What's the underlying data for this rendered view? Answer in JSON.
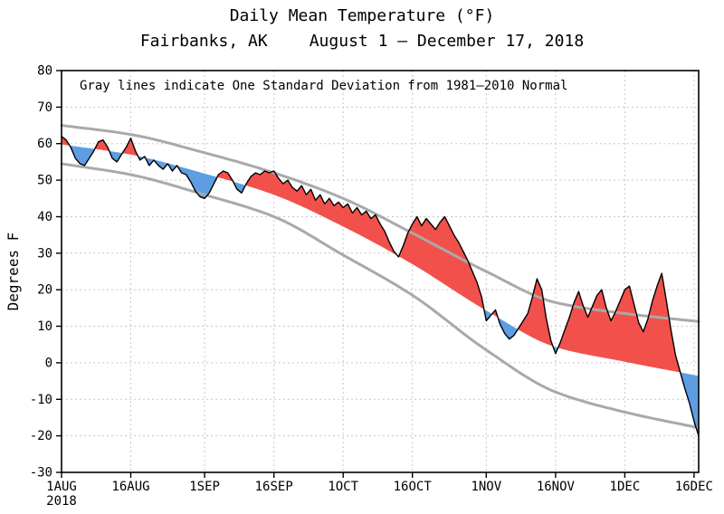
{
  "chart_data": {
    "type": "area",
    "title": "Daily Mean Temperature (°F)",
    "location": "Fairbanks, AK",
    "date_range": "August 1 — December 17, 2018",
    "annotation": "Gray lines indicate One Standard Deviation from 1981–2010 Normal",
    "ylabel": "Degrees F",
    "ylim": [
      -30,
      80
    ],
    "y_ticks": [
      -30,
      -20,
      -10,
      0,
      10,
      20,
      30,
      40,
      50,
      60,
      70,
      80
    ],
    "x_axis_year_label": "2018",
    "days_total": 138,
    "x_ticks": [
      {
        "day": 0,
        "label": "1AUG"
      },
      {
        "day": 15,
        "label": "16AUG"
      },
      {
        "day": 31,
        "label": "1SEP"
      },
      {
        "day": 46,
        "label": "16SEP"
      },
      {
        "day": 61,
        "label": "1OCT"
      },
      {
        "day": 76,
        "label": "16OCT"
      },
      {
        "day": 92,
        "label": "1NOV"
      },
      {
        "day": 107,
        "label": "16NOV"
      },
      {
        "day": 122,
        "label": "1DEC"
      },
      {
        "day": 137,
        "label": "16DEC"
      }
    ],
    "colors": {
      "above_normal": "#f2504b",
      "below_normal": "#5d9ee3",
      "sd_line": "#a9a9a9",
      "trace": "#000000",
      "grid": "#c8c8c8"
    },
    "series": {
      "daily_mean_temp_f": [
        62,
        61,
        59,
        56,
        54.5,
        54,
        56,
        58,
        60.5,
        61,
        59,
        56,
        55,
        57,
        59,
        61.5,
        58,
        55.5,
        56.5,
        54,
        55.5,
        54,
        53,
        54.5,
        52.5,
        54,
        52,
        51.5,
        49.5,
        47,
        45.5,
        45,
        46.5,
        49,
        51.5,
        52.5,
        52,
        50,
        47.5,
        46.5,
        49,
        51,
        52,
        51.5,
        52.5,
        52,
        52.5,
        50.5,
        49,
        50,
        48,
        47,
        48.5,
        46,
        47.5,
        44.5,
        46,
        43.5,
        45,
        43,
        44,
        42.5,
        43.5,
        41,
        42.5,
        40.5,
        41.5,
        39.5,
        40.5,
        38,
        36,
        33,
        30.5,
        29,
        32,
        35.5,
        38,
        40,
        37.5,
        39.5,
        38,
        36.5,
        38.5,
        40,
        37.5,
        35,
        33,
        30.5,
        28,
        25,
        22,
        18,
        11.5,
        13,
        14.5,
        10.5,
        8,
        6.5,
        7.5,
        9.5,
        11.5,
        13.5,
        18,
        23,
        20,
        12,
        6,
        2.5,
        5.5,
        9,
        12.5,
        16.5,
        19.5,
        15.5,
        12.5,
        15.5,
        18.5,
        20,
        15,
        11.5,
        14,
        17,
        20,
        21,
        16,
        11,
        8.5,
        12,
        17,
        21,
        24.5,
        17,
        9,
        2,
        -2.5,
        -7,
        -11,
        -16,
        -20
      ],
      "normal_keypoints": {
        "days": [
          0,
          15,
          31,
          46,
          61,
          76,
          92,
          107,
          122,
          138
        ],
        "values": [
          59.8,
          57,
          51.8,
          46,
          37.3,
          27,
          14.3,
          4.3,
          0.3,
          -3.6
        ]
      },
      "upper_sd_keypoints": {
        "days": [
          0,
          15,
          31,
          46,
          61,
          76,
          92,
          107,
          122,
          138
        ],
        "values": [
          65,
          62.5,
          57.5,
          52,
          45,
          35.5,
          25,
          16.5,
          13.5,
          11.3
        ]
      },
      "lower_sd_keypoints": {
        "days": [
          0,
          15,
          31,
          46,
          61,
          76,
          92,
          107,
          122,
          138
        ],
        "values": [
          54.5,
          51.5,
          46,
          40,
          29.5,
          18.5,
          3.5,
          -8,
          -13.5,
          -17.8
        ]
      }
    }
  }
}
